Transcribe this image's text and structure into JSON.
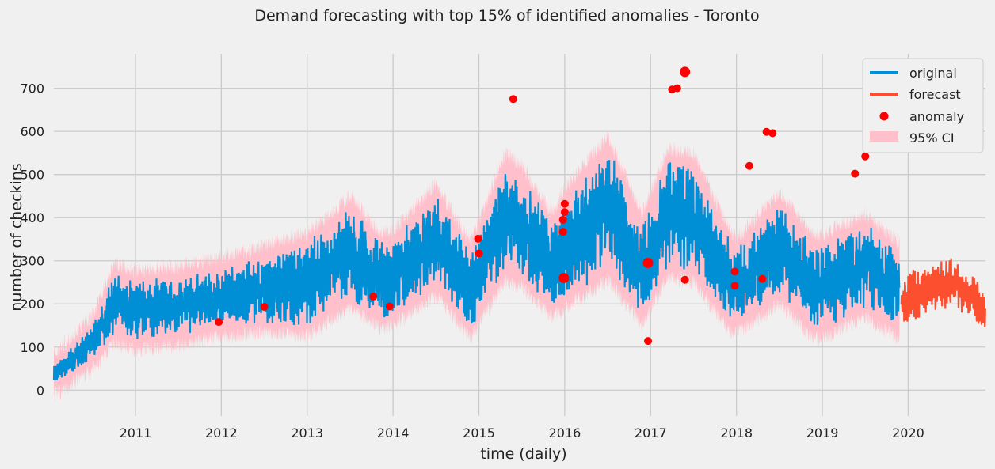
{
  "chart_data": {
    "type": "line",
    "title": "Demand forecasting with top 15% of identified anomalies - Toronto",
    "xlabel": "time (daily)",
    "ylabel": "number of checkins",
    "xlim": [
      2010.05,
      2020.9
    ],
    "ylim": [
      -60,
      780
    ],
    "x_ticks": [
      2011,
      2012,
      2013,
      2014,
      2015,
      2016,
      2017,
      2018,
      2019,
      2020
    ],
    "y_ticks": [
      0,
      100,
      200,
      300,
      400,
      500,
      600,
      700
    ],
    "grid": true,
    "legend": {
      "position": "top-right",
      "entries": [
        {
          "label": "original",
          "kind": "line",
          "color": "#008fd5"
        },
        {
          "label": "forecast",
          "kind": "line",
          "color": "#fc4f30"
        },
        {
          "label": "anomaly",
          "kind": "marker",
          "color": "#ff0000"
        },
        {
          "label": "95% CI",
          "kind": "patch",
          "color": "#ffc0cb"
        }
      ]
    },
    "original_trend": {
      "x": [
        2010.05,
        2010.5,
        2010.75,
        2011.0,
        2011.5,
        2012.0,
        2012.5,
        2013.0,
        2013.5,
        2013.85,
        2014.0,
        2014.5,
        2014.9,
        2015.3,
        2015.5,
        2015.85,
        2016.0,
        2016.5,
        2016.9,
        2017.2,
        2017.5,
        2017.9,
        2018.0,
        2018.5,
        2018.9,
        2019.0,
        2019.5,
        2019.9
      ],
      "level": [
        35,
        110,
        200,
        185,
        195,
        215,
        235,
        245,
        320,
        255,
        260,
        350,
        230,
        400,
        380,
        290,
        330,
        420,
        280,
        410,
        400,
        260,
        240,
        330,
        240,
        240,
        290,
        230
      ],
      "spread": [
        25,
        40,
        70,
        70,
        70,
        70,
        80,
        100,
        110,
        90,
        90,
        110,
        90,
        130,
        120,
        100,
        120,
        150,
        110,
        130,
        130,
        100,
        90,
        110,
        100,
        100,
        100,
        90
      ]
    },
    "forecast_trend": {
      "x": [
        2019.92,
        2020.0,
        2020.3,
        2020.5,
        2020.7,
        2020.9
      ],
      "level": [
        200,
        215,
        240,
        250,
        225,
        180
      ],
      "spread": [
        55,
        60,
        60,
        60,
        55,
        50
      ]
    },
    "anomalies": [
      {
        "x": 2011.97,
        "y": 158
      },
      {
        "x": 2012.5,
        "y": 193
      },
      {
        "x": 2013.77,
        "y": 217
      },
      {
        "x": 2013.96,
        "y": 194
      },
      {
        "x": 2014.99,
        "y": 351
      },
      {
        "x": 2015.0,
        "y": 317
      },
      {
        "x": 2015.4,
        "y": 675
      },
      {
        "x": 2015.98,
        "y": 367
      },
      {
        "x": 2015.98,
        "y": 395
      },
      {
        "x": 2015.99,
        "y": 260
      },
      {
        "x": 2016.0,
        "y": 432
      },
      {
        "x": 2016.0,
        "y": 413
      },
      {
        "x": 2016.97,
        "y": 295
      },
      {
        "x": 2016.97,
        "y": 114
      },
      {
        "x": 2017.25,
        "y": 697
      },
      {
        "x": 2017.31,
        "y": 700
      },
      {
        "x": 2017.4,
        "y": 256
      },
      {
        "x": 2017.4,
        "y": 738
      },
      {
        "x": 2017.98,
        "y": 275
      },
      {
        "x": 2017.98,
        "y": 242
      },
      {
        "x": 2018.15,
        "y": 520
      },
      {
        "x": 2018.3,
        "y": 258
      },
      {
        "x": 2018.35,
        "y": 599
      },
      {
        "x": 2018.42,
        "y": 596
      },
      {
        "x": 2019.38,
        "y": 502
      },
      {
        "x": 2019.5,
        "y": 542
      }
    ]
  }
}
